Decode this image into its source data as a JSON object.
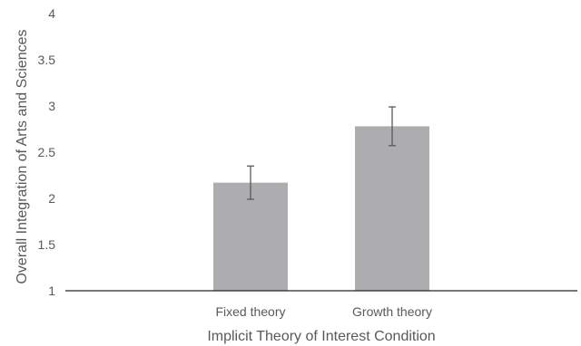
{
  "colors": {
    "bar": "#adadaf",
    "axis": "#262626",
    "error_bar": "#595959",
    "text": "#595959"
  },
  "chart_data": {
    "type": "bar",
    "categories": [
      "Fixed theory",
      "Growth theory"
    ],
    "values": [
      2.17,
      2.78
    ],
    "error": [
      0.18,
      0.21
    ],
    "xlabel": "Implicit Theory of Interest Condition",
    "ylabel": "Overall Integration of Arts and Sciences",
    "ylim": [
      1,
      4
    ],
    "yticks": [
      "1",
      "1.5",
      "2",
      "2.5",
      "3",
      "3.5",
      "4"
    ],
    "grid": false,
    "legend": "none"
  }
}
